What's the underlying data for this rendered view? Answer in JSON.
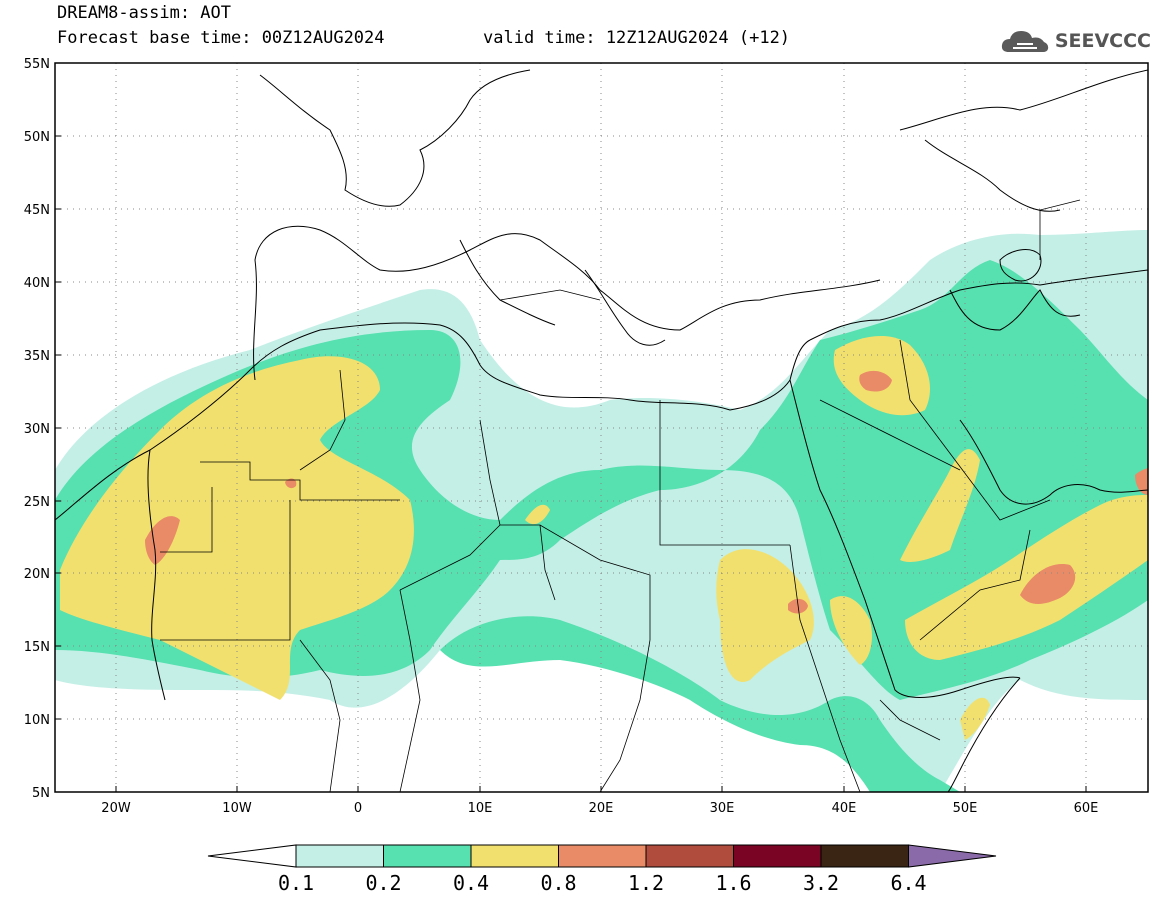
{
  "header": {
    "line1": "DREAM8-assim: AOT",
    "line2": "Forecast base time: 00Z12AUG2024",
    "valid": "valid time: 12Z12AUG2024 (+12)"
  },
  "logo": {
    "text": "SEEVCCC",
    "icon": "cloud-icon"
  },
  "map": {
    "lat_labels": [
      "55N",
      "50N",
      "45N",
      "40N",
      "35N",
      "30N",
      "25N",
      "20N",
      "15N",
      "10N",
      "5N"
    ],
    "lon_labels": [
      "20W",
      "10W",
      "0",
      "10E",
      "20E",
      "30E",
      "40E",
      "50E",
      "60E"
    ],
    "lon_range": [
      -25,
      65
    ],
    "lat_range": [
      5,
      55
    ],
    "grid": "dotted"
  },
  "colorbar": {
    "labels": [
      "0.1",
      "0.2",
      "0.4",
      "0.8",
      "1.2",
      "1.6",
      "3.2",
      "6.4"
    ],
    "colors": [
      "#ffffff",
      "#c4efe6",
      "#57e0b0",
      "#f2e06e",
      "#e98b67",
      "#b04c3e",
      "#7a0424",
      "#3a2414",
      "#8a6aa8"
    ]
  }
}
